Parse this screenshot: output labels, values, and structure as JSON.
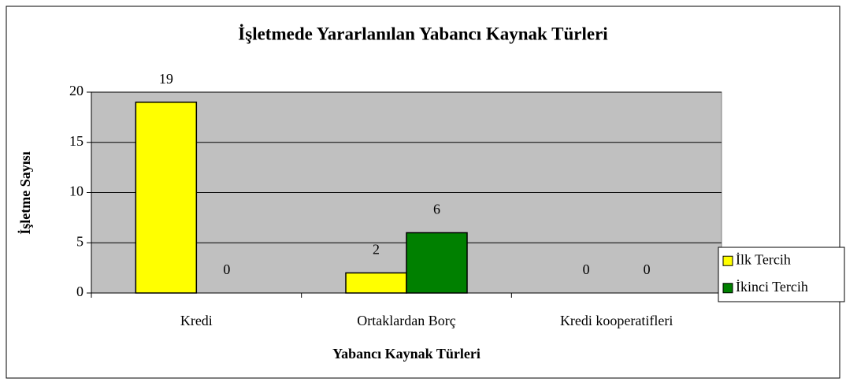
{
  "chart_data": {
    "type": "bar",
    "title": "İşletmede Yararlanılan Yabancı Kaynak Türleri",
    "x_label": "Yabancı Kaynak Türleri",
    "y_label": "İşletme Sayısı",
    "categories": [
      "Kredi",
      "Ortaklardan Borç",
      "Kredi kooperatifleri"
    ],
    "series": [
      {
        "name": "İlk Tercih",
        "color": "#ffff00",
        "values": [
          19,
          2,
          0
        ]
      },
      {
        "name": "İkinci Tercih",
        "color": "#008000",
        "values": [
          0,
          6,
          0
        ]
      }
    ],
    "ylim": [
      0,
      20
    ],
    "yticks": [
      0,
      5,
      10,
      15,
      20
    ],
    "grid": true,
    "legend": "right",
    "plot_background": "#c0c0c0"
  }
}
